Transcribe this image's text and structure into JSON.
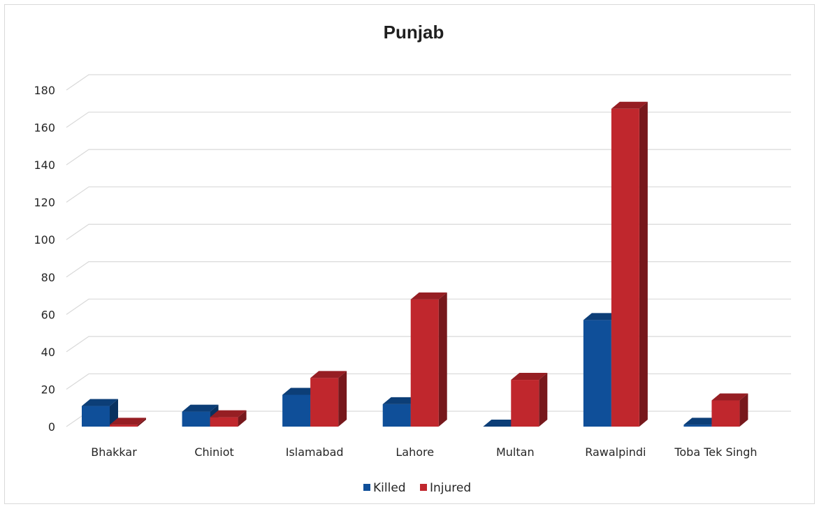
{
  "chart_data": {
    "type": "bar",
    "title": "Punjab",
    "xlabel": "",
    "ylabel": "",
    "categories": [
      "Bhakkar",
      "Chiniot",
      "Islamabad",
      "Lahore",
      "Multan",
      "Rawalpindi",
      "Toba Tek Singh"
    ],
    "series": [
      {
        "name": "Killed",
        "color": "#0f4f99",
        "values": [
          11,
          8,
          17,
          12,
          0,
          57,
          1
        ]
      },
      {
        "name": "Injured",
        "color": "#c0272d",
        "values": [
          1,
          5,
          26,
          68,
          25,
          170,
          14
        ]
      }
    ],
    "ylim": [
      0,
      180
    ],
    "yticks": [
      0,
      20,
      40,
      60,
      80,
      100,
      120,
      140,
      160,
      180
    ],
    "grid": true,
    "legend": "bottom",
    "style": "3d-clustered-column"
  }
}
